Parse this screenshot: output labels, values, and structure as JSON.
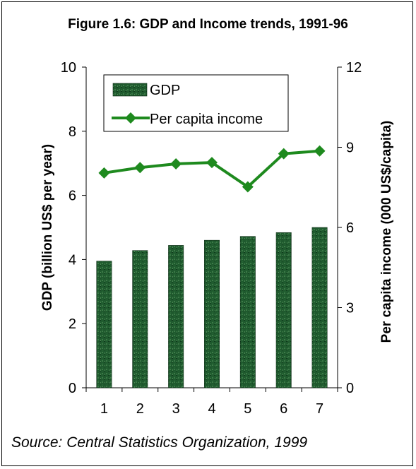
{
  "chart_data": {
    "type": "bar",
    "title": "Figure 1.6: GDP and Income trends, 1991-96",
    "categories": [
      "1",
      "2",
      "3",
      "4",
      "5",
      "6",
      "7"
    ],
    "series": [
      {
        "name": "GDP",
        "type": "bar",
        "axis": "left",
        "values": [
          3.95,
          4.28,
          4.44,
          4.6,
          4.72,
          4.84,
          5.0
        ]
      },
      {
        "name": "Per capita income",
        "type": "line",
        "axis": "right",
        "values": [
          8.04,
          8.24,
          8.38,
          8.43,
          7.52,
          8.76,
          8.86
        ]
      }
    ],
    "ylabel": "GDP (billion US$ per year)",
    "y2label": "Per capita income (000 US$/capita)",
    "ylim": [
      0,
      10
    ],
    "y2lim": [
      0,
      12
    ],
    "yticks": [
      "0",
      "2",
      "4",
      "6",
      "8",
      "10"
    ],
    "y2ticks": [
      "0",
      "3",
      "6",
      "9",
      "12"
    ],
    "legend_position": "top-left",
    "colors": {
      "bar": "#1f5a2e",
      "line": "#1e8a1e"
    }
  },
  "source": "Source: Central Statistics Organization, 1999"
}
